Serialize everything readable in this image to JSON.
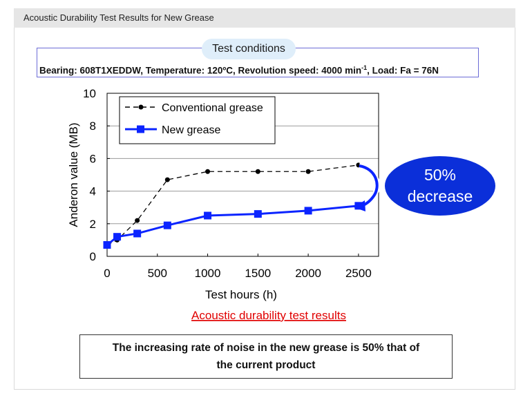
{
  "header": {
    "title": "Acoustic Durability Test Results for New Grease"
  },
  "conditions": {
    "label": "Test conditions",
    "text_before_sup": "Bearing: 608T1XEDDW, Temperature: 120ºC, Revolution speed: 4000 min",
    "sup": "-1",
    "text_after_sup": ", Load: Fa = 76N"
  },
  "callout": {
    "line1": "50%",
    "line2": "decrease",
    "color": "#0b2fd9"
  },
  "caption": "Acoustic durability test results",
  "conclusion": {
    "line1": "The increasing rate of noise in the new grease is 50% that of",
    "line2": "the current product"
  },
  "chart_data": {
    "type": "line",
    "xlabel": "Test hours (h)",
    "ylabel": "Anderon value (MB)",
    "xlim": [
      0,
      2700
    ],
    "ylim": [
      0,
      10
    ],
    "x_ticks": [
      0,
      500,
      1000,
      1500,
      2000,
      2500
    ],
    "y_ticks": [
      0,
      2,
      4,
      6,
      8,
      10
    ],
    "grid": "horizontal",
    "legend": "top-left",
    "series": [
      {
        "name": "Conventional grease",
        "color": "#000000",
        "style": "dashed",
        "marker": "circle",
        "x": [
          0,
          100,
          300,
          600,
          1000,
          1500,
          2000,
          2500
        ],
        "y": [
          0.7,
          1.0,
          2.2,
          4.7,
          5.2,
          5.2,
          5.2,
          5.6
        ]
      },
      {
        "name": "New grease",
        "color": "#0b24ff",
        "style": "solid",
        "marker": "square",
        "x": [
          0,
          100,
          300,
          600,
          1000,
          1500,
          2000,
          2500
        ],
        "y": [
          0.7,
          1.2,
          1.4,
          1.9,
          2.5,
          2.6,
          2.8,
          3.1
        ]
      }
    ]
  }
}
